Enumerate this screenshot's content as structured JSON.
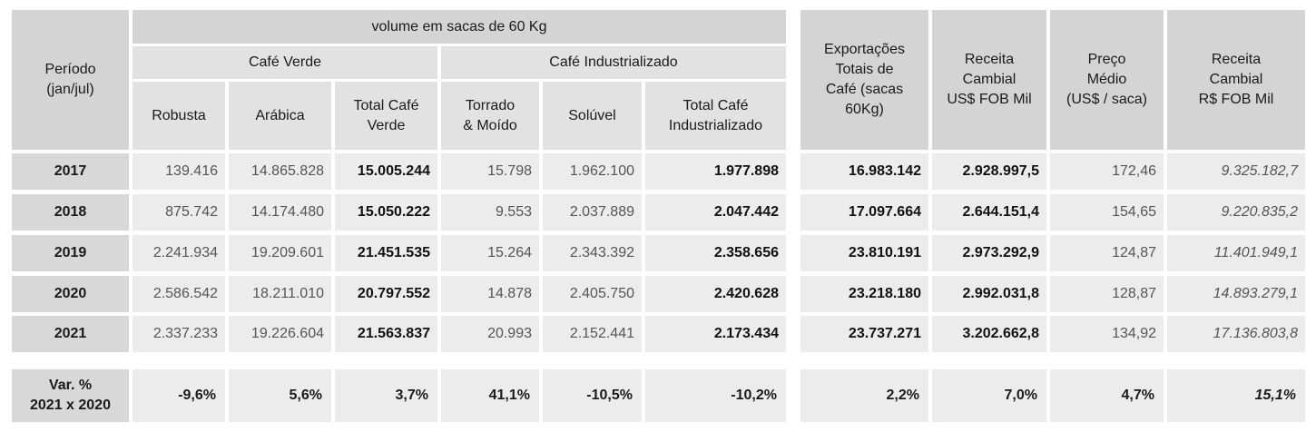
{
  "header": {
    "periodo": "Período\n(jan/jul)",
    "volume": "volume em sacas de 60 Kg",
    "cafe_verde": "Café Verde",
    "cafe_industrializado": "Café Industrializado",
    "robusta": "Robusta",
    "arabica": "Arábica",
    "total_verde": "Total Café\nVerde",
    "torrado": "Torrado\n& Moído",
    "soluvel": "Solúvel",
    "total_ind": "Total Café\nIndustrializado",
    "exportacoes": "Exportações\nTotais de\nCafé (sacas\n60Kg)",
    "receita_usd": "Receita\nCambial\nUS$ FOB Mil",
    "preco": "Preço\nMédio\n(US$ / saca)",
    "receita_brl": "Receita\nCambial\nR$ FOB Mil"
  },
  "rows": [
    {
      "year": "2017",
      "robusta": "139.416",
      "arabica": "14.865.828",
      "total_verde": "15.005.244",
      "torrado": "15.798",
      "soluvel": "1.962.100",
      "total_ind": "1.977.898",
      "exportacoes": "16.983.142",
      "receita_usd": "2.928.997,5",
      "preco": "172,46",
      "receita_brl": "9.325.182,7"
    },
    {
      "year": "2018",
      "robusta": "875.742",
      "arabica": "14.174.480",
      "total_verde": "15.050.222",
      "torrado": "9.553",
      "soluvel": "2.037.889",
      "total_ind": "2.047.442",
      "exportacoes": "17.097.664",
      "receita_usd": "2.644.151,4",
      "preco": "154,65",
      "receita_brl": "9.220.835,2"
    },
    {
      "year": "2019",
      "robusta": "2.241.934",
      "arabica": "19.209.601",
      "total_verde": "21.451.535",
      "torrado": "15.264",
      "soluvel": "2.343.392",
      "total_ind": "2.358.656",
      "exportacoes": "23.810.191",
      "receita_usd": "2.973.292,9",
      "preco": "124,87",
      "receita_brl": "11.401.949,1"
    },
    {
      "year": "2020",
      "robusta": "2.586.542",
      "arabica": "18.211.010",
      "total_verde": "20.797.552",
      "torrado": "14.878",
      "soluvel": "2.405.750",
      "total_ind": "2.420.628",
      "exportacoes": "23.218.180",
      "receita_usd": "2.992.031,8",
      "preco": "128,87",
      "receita_brl": "14.893.279,1"
    },
    {
      "year": "2021",
      "robusta": "2.337.233",
      "arabica": "19.226.604",
      "total_verde": "21.563.837",
      "torrado": "20.993",
      "soluvel": "2.152.441",
      "total_ind": "2.173.434",
      "exportacoes": "23.737.271",
      "receita_usd": "3.202.662,8",
      "preco": "134,92",
      "receita_brl": "17.136.803,8"
    }
  ],
  "variation": {
    "label": "Var. %\n2021 x 2020",
    "robusta": "-9,6%",
    "arabica": "5,6%",
    "total_verde": "3,7%",
    "torrado": "41,1%",
    "soluvel": "-10,5%",
    "total_ind": "-10,2%",
    "exportacoes": "2,2%",
    "receita_usd": "7,0%",
    "preco": "4,7%",
    "receita_brl": "15,1%"
  }
}
